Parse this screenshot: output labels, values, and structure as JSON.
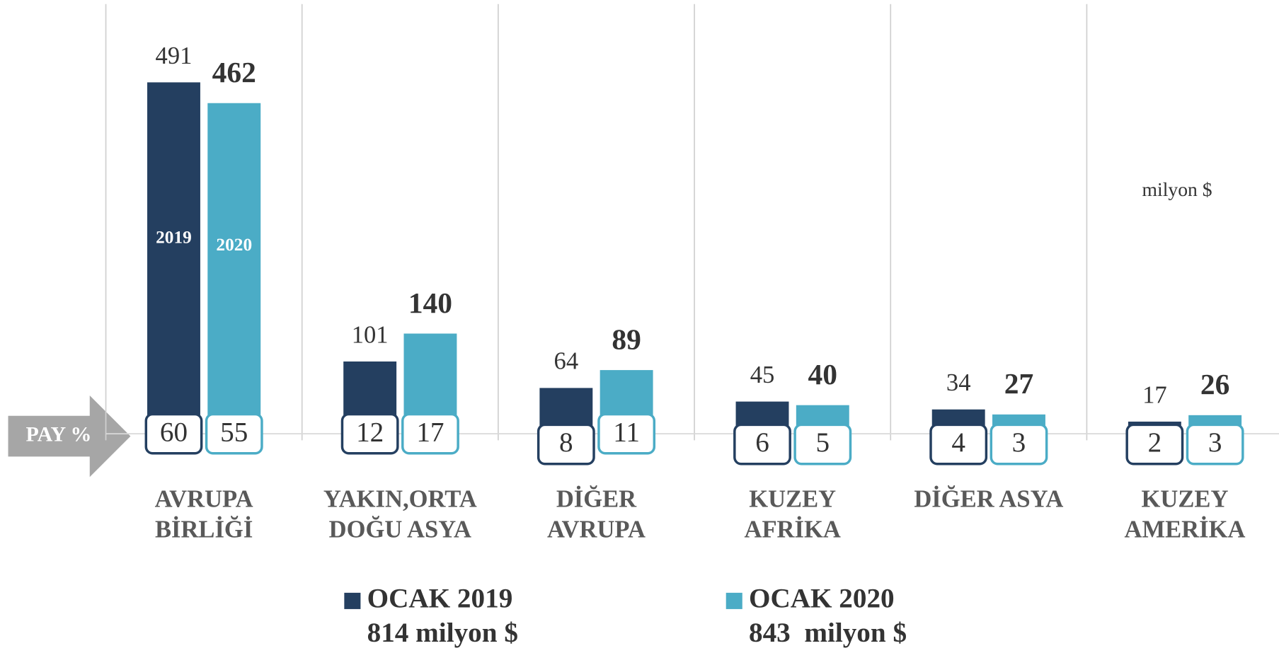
{
  "chart_data": {
    "type": "bar",
    "categories": [
      [
        "AVRUPA",
        "BİRLİĞİ"
      ],
      [
        "YAKIN,ORTA",
        "DOĞU ASYA"
      ],
      [
        "DİĞER",
        "AVRUPA"
      ],
      [
        "KUZEY",
        "AFRİKA"
      ],
      [
        "DİĞER ASYA"
      ],
      [
        "KUZEY",
        "AMERİKA"
      ]
    ],
    "series": [
      {
        "name": "OCAK 2019",
        "total": "814 milyon $",
        "inner_label": "2019",
        "color": "#243f60",
        "values": [
          491,
          101,
          64,
          45,
          34,
          17
        ],
        "shares": [
          60,
          12,
          8,
          6,
          4,
          2
        ]
      },
      {
        "name": "OCAK 2020",
        "total": "843  milyon $",
        "inner_label": "2020",
        "color": "#4bacc6",
        "values": [
          462,
          140,
          89,
          40,
          27,
          26
        ],
        "shares": [
          55,
          17,
          11,
          5,
          3,
          3
        ]
      }
    ],
    "share_label": "PAY %",
    "unit_label": "milyon $"
  }
}
